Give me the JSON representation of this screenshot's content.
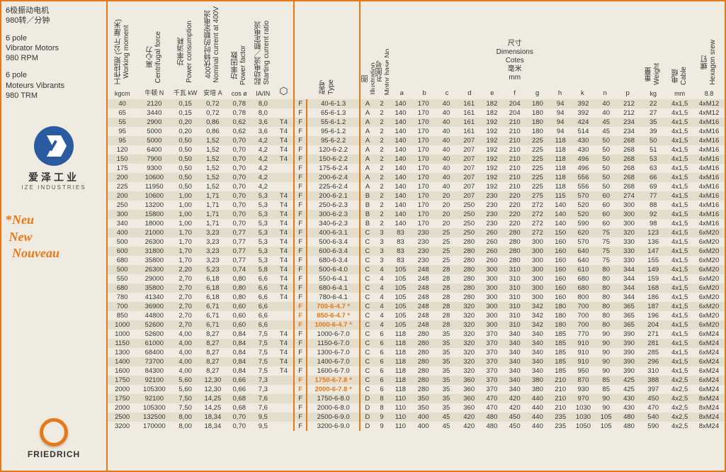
{
  "sidebar": {
    "title_zh": "6极振动电机\n980转／分钟",
    "title_en1": "6 pole\nVibrator Motors\n980 RPM",
    "title_en2": "6 pole\nMoteurs Vibrants\n980 TRM",
    "ize_cn": "爱泽工业",
    "ize_en": "IZE INDUSTRIES",
    "new_star": "*",
    "new1": "Neu",
    "new2": "New",
    "new3": "Nouveau",
    "friedrich": "FRIEDRICH"
  },
  "headers": {
    "units": [
      "kgcm",
      "牛顿 N",
      "千瓦 kW",
      "安培 A",
      "cos ø",
      "IA/IN",
      "",
      "",
      "",
      "",
      "",
      "a",
      "b",
      "c",
      "d",
      "e",
      "f",
      "g",
      "h",
      "k",
      "n",
      "p",
      "kg",
      "mm",
      "8.8"
    ],
    "labels": [
      "工作扭矩 (公斤·厘米)\nWorking moment",
      "离心力\nCentrifugal force",
      "功率消耗\nPower consumption",
      "400伏特时的额定电流\nNominal current at 400V",
      "功率因数\nPower factor",
      "起动电流／额定电流\nStarting current ratio",
      "⬡",
      "型号\nType",
      "图\nIllustration",
      "孔图号\nMotor base No.",
      "",
      "",
      "",
      "",
      "",
      "",
      "",
      "",
      "",
      "",
      "",
      "",
      "重量\nWeight",
      "电缆\nCable",
      "螺钉\nHexagon srew"
    ],
    "dims_group": "尺寸\nDimensions\nCotes\n毫米\nmm"
  },
  "colors": {
    "accent": "#e67817",
    "bg": "#f0ebe0",
    "stripe": "#e4ddcb"
  },
  "rows": [
    {
      "d": [
        "40",
        "2120",
        "0,15",
        "0,72",
        "0,78",
        "8,0",
        "",
        "F",
        "40-6-1.3",
        "A",
        "2",
        "140",
        "170",
        "40",
        "161",
        "182",
        "204",
        "180",
        "94",
        "392",
        "40",
        "212",
        "22",
        "4x1,5",
        "4xM12"
      ]
    },
    {
      "d": [
        "65",
        "3440",
        "0,15",
        "0,72",
        "0,78",
        "8,0",
        "",
        "F",
        "65-6-1.3",
        "A",
        "2",
        "140",
        "170",
        "40",
        "161",
        "182",
        "204",
        "180",
        "94",
        "392",
        "40",
        "212",
        "27",
        "4x1,5",
        "4xM12"
      ]
    },
    {
      "d": [
        "55",
        "2900",
        "0,20",
        "0,86",
        "0,62",
        "3,6",
        "T4",
        "F",
        "55-6-1.2",
        "A",
        "2",
        "140",
        "170",
        "40",
        "161",
        "192",
        "210",
        "180",
        "94",
        "424",
        "45",
        "234",
        "35",
        "4x1,5",
        "4xM16"
      ]
    },
    {
      "d": [
        "95",
        "5000",
        "0,20",
        "0,86",
        "0,62",
        "3,6",
        "T4",
        "F",
        "95-6-1.2",
        "A",
        "2",
        "140",
        "170",
        "40",
        "161",
        "192",
        "210",
        "180",
        "94",
        "514",
        "45",
        "234",
        "39",
        "4x1,5",
        "4xM16"
      ]
    },
    {
      "d": [
        "95",
        "5000",
        "0,50",
        "1,52",
        "0,70",
        "4,2",
        "T4",
        "F",
        "95-6-2.2",
        "A",
        "2",
        "140",
        "170",
        "40",
        "207",
        "192",
        "210",
        "225",
        "118",
        "430",
        "50",
        "268",
        "50",
        "4x1,5",
        "4xM16"
      ]
    },
    {
      "d": [
        "120",
        "6400",
        "0,50",
        "1,52",
        "0,70",
        "4,2",
        "T4",
        "F",
        "120-6-2.2",
        "A",
        "2",
        "140",
        "170",
        "40",
        "207",
        "192",
        "210",
        "225",
        "118",
        "430",
        "50",
        "268",
        "51",
        "4x1,5",
        "4xM16"
      ]
    },
    {
      "d": [
        "150",
        "7900",
        "0,50",
        "1,52",
        "0,70",
        "4,2",
        "T4",
        "F",
        "150-6-2.2",
        "A",
        "2",
        "140",
        "170",
        "40",
        "207",
        "192",
        "210",
        "225",
        "118",
        "496",
        "50",
        "268",
        "53",
        "4x1,5",
        "4xM16"
      ]
    },
    {
      "d": [
        "175",
        "9300",
        "0,50",
        "1,52",
        "0,70",
        "4,2",
        "",
        "F",
        "175-6-2.4",
        "A",
        "2",
        "140",
        "170",
        "40",
        "207",
        "192",
        "210",
        "225",
        "118",
        "496",
        "50",
        "268",
        "63",
        "4x1,5",
        "4xM16"
      ]
    },
    {
      "d": [
        "200",
        "10600",
        "0,50",
        "1,52",
        "0,70",
        "4,2",
        "",
        "F",
        "200-6-2.4",
        "A",
        "2",
        "140",
        "170",
        "40",
        "207",
        "192",
        "210",
        "225",
        "118",
        "556",
        "50",
        "268",
        "66",
        "4x1,5",
        "4xM16"
      ]
    },
    {
      "d": [
        "225",
        "11950",
        "0,50",
        "1,52",
        "0,70",
        "4,2",
        "",
        "F",
        "225-6-2.4",
        "A",
        "2",
        "140",
        "170",
        "40",
        "207",
        "192",
        "210",
        "225",
        "118",
        "556",
        "50",
        "268",
        "69",
        "4x1,5",
        "4xM16"
      ]
    },
    {
      "d": [
        "200",
        "10600",
        "1,00",
        "1,71",
        "0,70",
        "5,3",
        "T4",
        "F",
        "200-6-2.1",
        "B",
        "2",
        "140",
        "170",
        "20",
        "207",
        "230",
        "220",
        "275",
        "115",
        "570",
        "60",
        "274",
        "77",
        "4x1,5",
        "4xM16"
      ]
    },
    {
      "d": [
        "250",
        "13200",
        "1,00",
        "1,71",
        "0,70",
        "5,3",
        "T4",
        "F",
        "250-6-2.3",
        "B",
        "2",
        "140",
        "170",
        "20",
        "250",
        "230",
        "220",
        "272",
        "140",
        "520",
        "60",
        "300",
        "88",
        "4x1,5",
        "4xM16"
      ]
    },
    {
      "d": [
        "300",
        "15800",
        "1,00",
        "1,71",
        "0,70",
        "5,3",
        "T4",
        "F",
        "300-6-2.3",
        "B",
        "2",
        "140",
        "170",
        "20",
        "250",
        "230",
        "220",
        "272",
        "140",
        "520",
        "60",
        "300",
        "92",
        "4x1,5",
        "4xM16"
      ]
    },
    {
      "d": [
        "340",
        "18000",
        "1,00",
        "1,71",
        "0,70",
        "5,3",
        "T4",
        "F",
        "340-6-2.3",
        "B",
        "2",
        "140",
        "170",
        "20",
        "250",
        "230",
        "220",
        "272",
        "140",
        "590",
        "60",
        "300",
        "98",
        "4x1,5",
        "4xM16"
      ]
    },
    {
      "d": [
        "400",
        "21000",
        "1,70",
        "3,23",
        "0,77",
        "5,3",
        "T4",
        "F",
        "400-6-3.1",
        "C",
        "3",
        "83",
        "230",
        "25",
        "250",
        "260",
        "280",
        "272",
        "150",
        "620",
        "75",
        "320",
        "123",
        "4x1,5",
        "6xM20"
      ]
    },
    {
      "d": [
        "500",
        "26300",
        "1,70",
        "3,23",
        "0,77",
        "5,3",
        "T4",
        "F",
        "500-6-3.4",
        "C",
        "3",
        "83",
        "230",
        "25",
        "280",
        "260",
        "280",
        "300",
        "160",
        "570",
        "75",
        "330",
        "136",
        "4x1,5",
        "6xM20"
      ]
    },
    {
      "d": [
        "600",
        "31800",
        "1,70",
        "3,23",
        "0,77",
        "5,3",
        "T4",
        "F",
        "600-6-3.4",
        "C",
        "3",
        "83",
        "230",
        "25",
        "280",
        "260",
        "280",
        "300",
        "160",
        "640",
        "75",
        "330",
        "147",
        "4x1,5",
        "6xM20"
      ]
    },
    {
      "d": [
        "680",
        "35800",
        "1,70",
        "3,23",
        "0,77",
        "5,3",
        "T4",
        "F",
        "680-6-3.4",
        "C",
        "3",
        "83",
        "230",
        "25",
        "280",
        "260",
        "280",
        "300",
        "160",
        "640",
        "75",
        "330",
        "155",
        "4x1,5",
        "6xM20"
      ]
    },
    {
      "d": [
        "500",
        "26300",
        "2,20",
        "5,23",
        "0,74",
        "5,8",
        "T4",
        "F",
        "500-6-4.0",
        "C",
        "4",
        "105",
        "248",
        "28",
        "280",
        "300",
        "310",
        "300",
        "160",
        "610",
        "80",
        "344",
        "149",
        "4x1,5",
        "6xM20"
      ]
    },
    {
      "d": [
        "550",
        "29000",
        "2,70",
        "6,18",
        "0,80",
        "6,6",
        "T4",
        "F",
        "550-6-4.1",
        "C",
        "4",
        "105",
        "248",
        "28",
        "280",
        "300",
        "310",
        "300",
        "160",
        "680",
        "80",
        "344",
        "159",
        "4x1,5",
        "6xM20"
      ]
    },
    {
      "d": [
        "680",
        "35800",
        "2,70",
        "6,18",
        "0,80",
        "6,6",
        "T4",
        "F",
        "680-6-4.1",
        "C",
        "4",
        "105",
        "248",
        "28",
        "280",
        "300",
        "310",
        "300",
        "160",
        "680",
        "80",
        "344",
        "168",
        "4x1,5",
        "6xM20"
      ]
    },
    {
      "d": [
        "780",
        "41340",
        "2,70",
        "6,18",
        "0,80",
        "6,6",
        "T4",
        "F",
        "780-6-4.1",
        "C",
        "4",
        "105",
        "248",
        "28",
        "280",
        "300",
        "310",
        "300",
        "160",
        "800",
        "80",
        "344",
        "186",
        "4x1,5",
        "6xM20"
      ]
    },
    {
      "d": [
        "700",
        "36900",
        "2,70",
        "6,71",
        "0,60",
        "6,6",
        "",
        "F",
        "700-6-4.7 *",
        "C",
        "4",
        "105",
        "248",
        "28",
        "320",
        "300",
        "310",
        "342",
        "180",
        "700",
        "80",
        "365",
        "187",
        "4x1,5",
        "6xM20"
      ],
      "hl": true
    },
    {
      "d": [
        "850",
        "44800",
        "2,70",
        "6,71",
        "0,60",
        "6,6",
        "",
        "F",
        "850-6-4.7 *",
        "C",
        "4",
        "105",
        "248",
        "28",
        "320",
        "300",
        "310",
        "342",
        "180",
        "700",
        "80",
        "365",
        "196",
        "4x1,5",
        "6xM20"
      ],
      "hl": true
    },
    {
      "d": [
        "1000",
        "52600",
        "2,70",
        "6,71",
        "0,60",
        "6,6",
        "",
        "F",
        "1000-6-4.7 *",
        "C",
        "4",
        "105",
        "248",
        "28",
        "320",
        "300",
        "310",
        "342",
        "180",
        "700",
        "80",
        "365",
        "204",
        "4x1,5",
        "6xM20"
      ],
      "hl": true
    },
    {
      "d": [
        "1000",
        "52600",
        "4,00",
        "8,27",
        "0,84",
        "7,5",
        "T4",
        "F",
        "1000-6-7.0",
        "C",
        "6",
        "118",
        "280",
        "35",
        "320",
        "370",
        "340",
        "340",
        "185",
        "770",
        "90",
        "390",
        "271",
        "4x1,5",
        "6xM24"
      ]
    },
    {
      "d": [
        "1150",
        "61000",
        "4,00",
        "8,27",
        "0,84",
        "7,5",
        "T4",
        "F",
        "1150-6-7.0",
        "C",
        "6",
        "118",
        "280",
        "35",
        "320",
        "370",
        "340",
        "340",
        "185",
        "910",
        "90",
        "390",
        "281",
        "4x1,5",
        "6xM24"
      ]
    },
    {
      "d": [
        "1300",
        "68400",
        "4,00",
        "8,27",
        "0,84",
        "7,5",
        "T4",
        "F",
        "1300-6-7.0",
        "C",
        "6",
        "118",
        "280",
        "35",
        "320",
        "370",
        "340",
        "340",
        "185",
        "910",
        "90",
        "390",
        "285",
        "4x1,5",
        "6xM24"
      ]
    },
    {
      "d": [
        "1400",
        "73700",
        "4,00",
        "8,27",
        "0,84",
        "7,5",
        "T4",
        "F",
        "1400-6-7.0",
        "C",
        "6",
        "118",
        "280",
        "35",
        "320",
        "370",
        "340",
        "340",
        "185",
        "910",
        "90",
        "390",
        "296",
        "4x1,5",
        "6xM24"
      ]
    },
    {
      "d": [
        "1600",
        "84300",
        "4,00",
        "8,27",
        "0,84",
        "7,5",
        "T4",
        "F",
        "1600-6-7.0",
        "C",
        "6",
        "118",
        "280",
        "35",
        "320",
        "370",
        "340",
        "340",
        "185",
        "950",
        "90",
        "390",
        "310",
        "4x1,5",
        "6xM24"
      ]
    },
    {
      "d": [
        "1750",
        "92100",
        "5,60",
        "12,30",
        "0,66",
        "7,3",
        "",
        "F",
        "1750-6-7.8 *",
        "C",
        "6",
        "118",
        "280",
        "35",
        "360",
        "370",
        "340",
        "380",
        "210",
        "870",
        "85",
        "425",
        "388",
        "4x2,5",
        "6xM24"
      ],
      "hl": true
    },
    {
      "d": [
        "2000",
        "105300",
        "5,60",
        "12,30",
        "0,66",
        "7,3",
        "",
        "F",
        "2000-6-7.8 *",
        "C",
        "6",
        "118",
        "280",
        "35",
        "360",
        "370",
        "340",
        "380",
        "210",
        "930",
        "85",
        "425",
        "397",
        "4x2,5",
        "6xM24"
      ],
      "hl": true
    },
    {
      "d": [
        "1750",
        "92100",
        "7,50",
        "14,25",
        "0,68",
        "7,6",
        "",
        "F",
        "1750-6-8.0",
        "D",
        "8",
        "110",
        "350",
        "35",
        "360",
        "470",
        "420",
        "440",
        "210",
        "970",
        "90",
        "430",
        "450",
        "4x2,5",
        "8xM24"
      ]
    },
    {
      "d": [
        "2000",
        "105300",
        "7,50",
        "14,25",
        "0,68",
        "7,6",
        "",
        "F",
        "2000-6-8.0",
        "D",
        "8",
        "110",
        "350",
        "35",
        "360",
        "470",
        "420",
        "440",
        "210",
        "1030",
        "90",
        "430",
        "470",
        "4x2,5",
        "8xM24"
      ]
    },
    {
      "d": [
        "2500",
        "132500",
        "8,00",
        "18,34",
        "0,70",
        "9,5",
        "",
        "F",
        "2500-6-9.0",
        "D",
        "9",
        "110",
        "400",
        "45",
        "420",
        "480",
        "450",
        "440",
        "235",
        "1030",
        "105",
        "480",
        "540",
        "4x2,5",
        "8xM24"
      ]
    },
    {
      "d": [
        "3200",
        "170000",
        "8,00",
        "18,34",
        "0,70",
        "9,5",
        "",
        "F",
        "3200-6-9.0",
        "D",
        "9",
        "110",
        "400",
        "45",
        "420",
        "480",
        "450",
        "440",
        "235",
        "1050",
        "105",
        "480",
        "590",
        "4x2,5",
        "8xM24"
      ]
    }
  ]
}
